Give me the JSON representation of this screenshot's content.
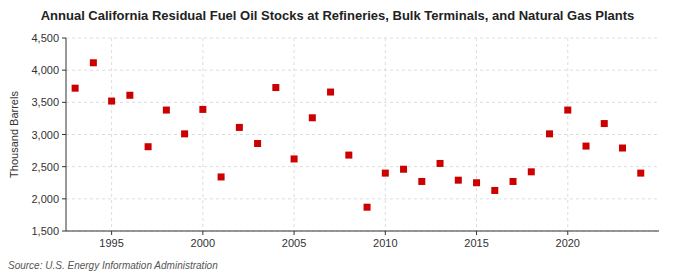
{
  "chart_data": {
    "type": "scatter",
    "title": "Annual California Residual Fuel Oil Stocks at Refineries, Bulk Terminals, and Natural Gas Plants",
    "ylabel": "Thousand Barrels",
    "source": "Source: U.S. Energy Information Administration",
    "x": [
      1993,
      1994,
      1995,
      1996,
      1997,
      1998,
      1999,
      2000,
      2001,
      2002,
      2003,
      2004,
      2005,
      2006,
      2007,
      2008,
      2009,
      2010,
      2011,
      2012,
      2013,
      2014,
      2015,
      2016,
      2017,
      2018,
      2019,
      2020,
      2021,
      2022,
      2023,
      2024
    ],
    "values": [
      3720,
      4115,
      3520,
      3610,
      2810,
      3380,
      3010,
      3390,
      2340,
      3110,
      2860,
      3730,
      2620,
      3260,
      3660,
      2680,
      1870,
      2400,
      2460,
      2270,
      2550,
      2290,
      2250,
      2130,
      2270,
      2420,
      3010,
      3380,
      2820,
      3170,
      2790,
      2400
    ],
    "color": "#cc0000",
    "marker": "square",
    "xlim": [
      1992.5,
      2025
    ],
    "xticks": [
      1995,
      2000,
      2005,
      2010,
      2015,
      2020
    ],
    "ylim": [
      1500,
      4500
    ],
    "yticks": [
      {
        "value": 1500,
        "label": "1,500"
      },
      {
        "value": 2000,
        "label": "2,000"
      },
      {
        "value": 2500,
        "label": "2,500"
      },
      {
        "value": 3000,
        "label": "3,000"
      },
      {
        "value": 3500,
        "label": "3,500"
      },
      {
        "value": 4000,
        "label": "4,000"
      },
      {
        "value": 4500,
        "label": "4,500"
      }
    ],
    "grid": true
  }
}
